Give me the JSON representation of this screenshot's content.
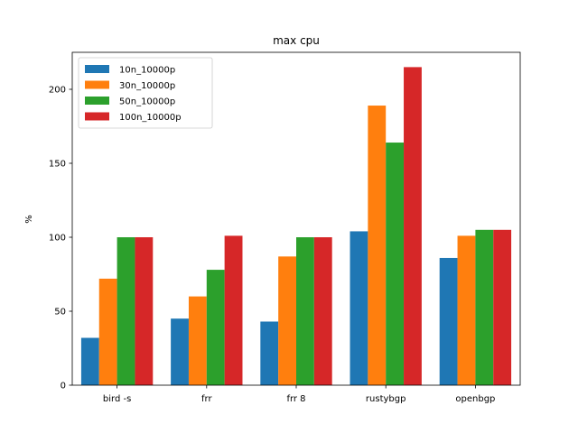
{
  "chart_data": {
    "type": "bar",
    "title": "max cpu",
    "xlabel": "",
    "ylabel": "%",
    "ylim": [
      0,
      225
    ],
    "yticks": [
      0,
      50,
      100,
      150,
      200
    ],
    "grid": false,
    "legend_position": "top-left",
    "categories": [
      "bird -s",
      "frr",
      "frr 8",
      "rustybgp",
      "openbgp"
    ],
    "series": [
      {
        "name": "10n_10000p",
        "color": "#1f77b4",
        "values": [
          32,
          45,
          43,
          104,
          86
        ]
      },
      {
        "name": "30n_10000p",
        "color": "#ff7f0e",
        "values": [
          72,
          60,
          87,
          189,
          101
        ]
      },
      {
        "name": "50n_10000p",
        "color": "#2ca02c",
        "values": [
          100,
          78,
          100,
          164,
          105
        ]
      },
      {
        "name": "100n_10000p",
        "color": "#d62728",
        "values": [
          100,
          101,
          100,
          215,
          105
        ]
      }
    ]
  }
}
